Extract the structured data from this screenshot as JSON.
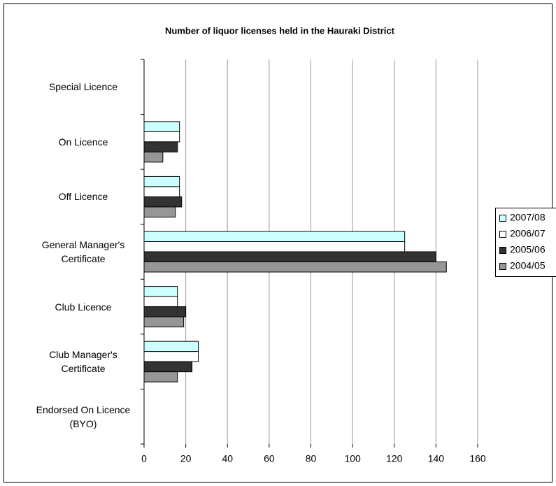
{
  "chart_data": {
    "type": "bar",
    "orientation": "horizontal",
    "title": "Number of liquor licenses held in the Hauraki District",
    "categories": [
      "Special Licence",
      "On Licence",
      "Off Licence",
      "General Manager's Certificate",
      "Club Licence",
      "Club Manager's Certificate",
      "Endorsed On Licence (BYO)"
    ],
    "series": [
      {
        "name": "2007/08",
        "color": "#ccffff",
        "values": [
          0,
          17,
          17,
          125,
          16,
          26,
          0
        ]
      },
      {
        "name": "2006/07",
        "color": "#ffffff",
        "values": [
          0,
          17,
          17,
          125,
          16,
          26,
          0
        ]
      },
      {
        "name": "2005/06",
        "color": "#333333",
        "values": [
          0,
          16,
          18,
          140,
          20,
          23,
          0
        ]
      },
      {
        "name": "2004/05",
        "color": "#969696",
        "values": [
          0,
          9,
          15,
          145,
          19,
          16,
          0
        ]
      }
    ],
    "xlim": [
      0,
      160
    ],
    "xticks": [
      0,
      20,
      40,
      60,
      80,
      100,
      120,
      140,
      160
    ],
    "grid": true,
    "legend": "right"
  }
}
